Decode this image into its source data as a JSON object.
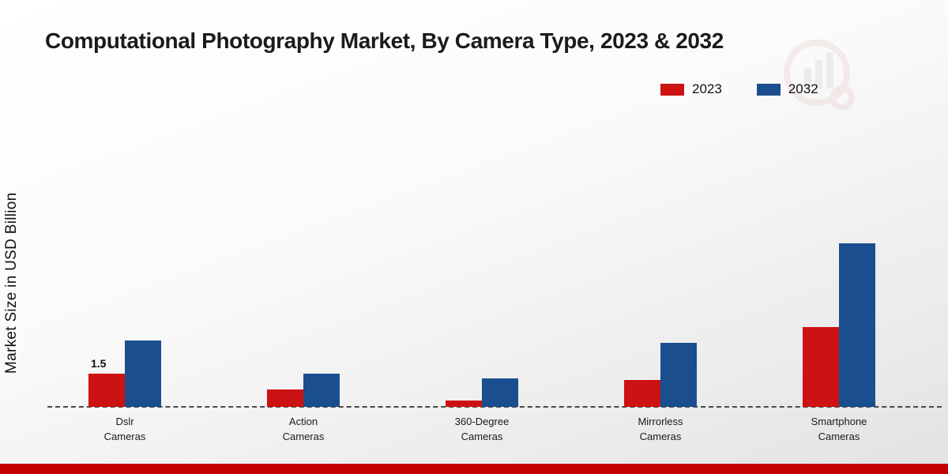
{
  "footer": {
    "strip_color": "#c40000"
  },
  "watermark": {
    "name": "brand-watermark-logo"
  },
  "chart_data": {
    "type": "bar",
    "title": "Computational Photography Market, By Camera Type, 2023 & 2032",
    "ylabel": "Market Size in USD Billion",
    "xlabel": "",
    "categories": [
      "Dslr Cameras",
      "Action Cameras",
      "360-Degree Cameras",
      "Mirrorless Cameras",
      "Smartphone Cameras"
    ],
    "series": [
      {
        "name": "2023",
        "color": "#cc1212",
        "values": [
          1.5,
          0.8,
          0.3,
          1.2,
          3.6
        ]
      },
      {
        "name": "2032",
        "color": "#1b4e8f",
        "values": [
          3.0,
          1.5,
          1.3,
          2.9,
          7.4
        ]
      }
    ],
    "ylim": [
      0,
      8
    ],
    "grid": false,
    "legend_position": "top-right",
    "baseline_style": "dashed",
    "annotations": [
      {
        "category_index": 0,
        "series": "2023",
        "text": "1.5"
      }
    ]
  }
}
